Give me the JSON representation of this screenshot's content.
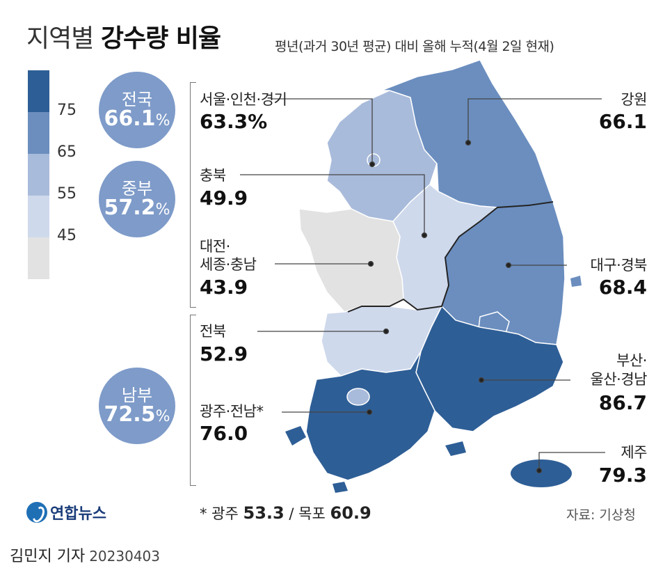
{
  "title": {
    "main": "지역별",
    "bold": "강수량 비율"
  },
  "subtitle": "평년(과거 30년 평균) 대비 올해 누적(4월 2일 현재)",
  "legend": {
    "ticks": [
      "75",
      "65",
      "55",
      "45"
    ],
    "colors": [
      "#2e5e96",
      "#6b8ebf",
      "#a9bbdb",
      "#cfd9ec",
      "#e2e2e2"
    ]
  },
  "summary": [
    {
      "name": "전국",
      "value": "66.1",
      "unit": "%"
    },
    {
      "name": "중부",
      "value": "57.2",
      "unit": "%"
    },
    {
      "name": "남부",
      "value": "72.5",
      "unit": "%"
    }
  ],
  "regions": {
    "seoul": {
      "name": "서울·인천·경기",
      "value": "63.3%"
    },
    "chungbuk": {
      "name": "충북",
      "value": "49.9"
    },
    "daejeon": {
      "name1": "대전·",
      "name2": "세종·충남",
      "value": "43.9"
    },
    "jeonbuk": {
      "name": "전북",
      "value": "52.9"
    },
    "gwangju": {
      "name": "광주·전남*",
      "value": "76.0"
    },
    "gangwon": {
      "name": "강원",
      "value": "66.1"
    },
    "daegu": {
      "name": "대구·경북",
      "value": "68.4"
    },
    "busan": {
      "name1": "부산·",
      "name2": "울산·경남",
      "value": "86.7"
    },
    "jeju": {
      "name": "제주",
      "value": "79.3"
    }
  },
  "footnote": {
    "prefix": "* 광주",
    "v1": "53.3",
    "mid": "/ 목포",
    "v2": "60.9"
  },
  "logo": "연합뉴스",
  "source": "자료: 기상청",
  "byline": {
    "author": "김민지 기자",
    "date": "20230403"
  }
}
